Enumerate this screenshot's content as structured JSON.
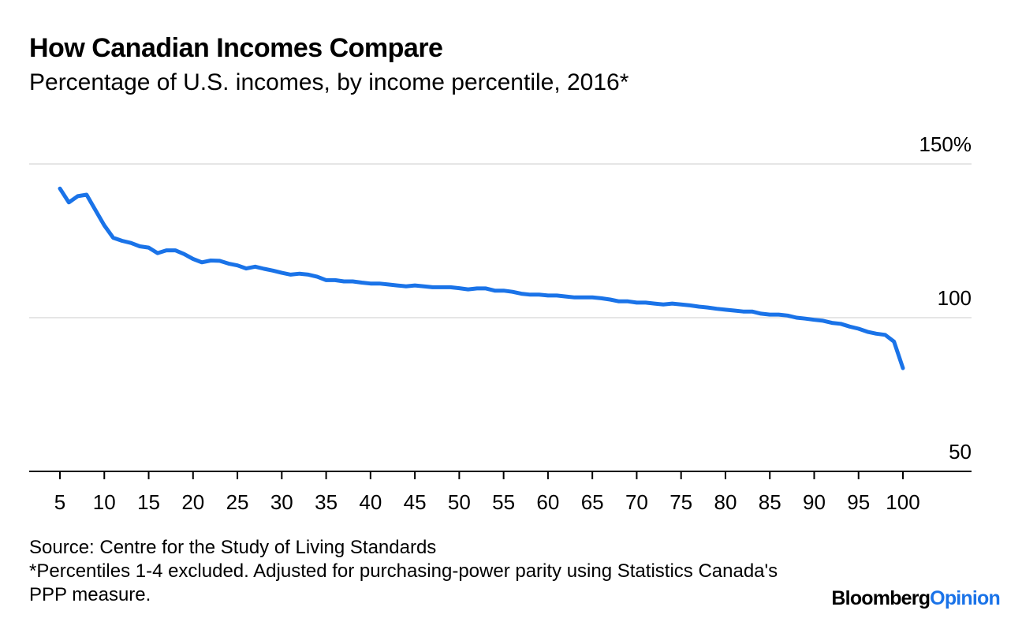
{
  "title": "How Canadian Incomes Compare",
  "subtitle": "Percentage of U.S. incomes, by income percentile, 2016*",
  "source": "Source: Centre for the Study of Living Standards",
  "footnote": "*Percentiles 1-4 excluded. Adjusted for purchasing-power parity using Statistics Canada's PPP measure.",
  "brand": {
    "part1": "Bloomberg",
    "part2": "Opinion"
  },
  "colors": {
    "line": "#1a73e8",
    "grid": "#e6e6e6",
    "axis": "#000000",
    "brand_accent": "#1a73e8"
  },
  "chart_data": {
    "type": "line",
    "xlabel": "",
    "ylabel": "",
    "xlim": [
      5,
      100
    ],
    "ylim": [
      50,
      150
    ],
    "x_ticks": [
      5,
      10,
      15,
      20,
      25,
      30,
      35,
      40,
      45,
      50,
      55,
      60,
      65,
      70,
      75,
      80,
      85,
      90,
      95,
      100
    ],
    "y_ticks": [
      {
        "value": 150,
        "label": "150%"
      },
      {
        "value": 100,
        "label": "100"
      },
      {
        "value": 50,
        "label": "50"
      }
    ],
    "grid": "horizontal",
    "series": [
      {
        "x": [
          5,
          6,
          7,
          8,
          9,
          10,
          11,
          12,
          13,
          14,
          15,
          16,
          17,
          18,
          19,
          20,
          21,
          22,
          23,
          24,
          25,
          26,
          27,
          28,
          29,
          30,
          31,
          32,
          33,
          34,
          35,
          36,
          37,
          38,
          39,
          40,
          41,
          42,
          43,
          44,
          45,
          46,
          47,
          48,
          49,
          50,
          51,
          52,
          53,
          54,
          55,
          56,
          57,
          58,
          59,
          60,
          61,
          62,
          63,
          64,
          65,
          66,
          67,
          68,
          69,
          70,
          71,
          72,
          73,
          74,
          75,
          76,
          77,
          78,
          79,
          80,
          81,
          82,
          83,
          84,
          85,
          86,
          87,
          88,
          89,
          90,
          91,
          92,
          93,
          94,
          95,
          96,
          97,
          98,
          99,
          100
        ],
        "values": [
          142,
          137.5,
          139.5,
          140,
          135,
          130,
          126,
          125,
          124.3,
          123.2,
          122.8,
          121,
          121.9,
          121.9,
          120.7,
          119.1,
          118,
          118.6,
          118.5,
          117.6,
          117,
          116,
          116.6,
          115.9,
          115.3,
          114.6,
          114,
          114.3,
          114,
          113.3,
          112.2,
          112.2,
          111.8,
          111.8,
          111.4,
          111.1,
          111.1,
          110.8,
          110.5,
          110.2,
          110.5,
          110.2,
          109.9,
          109.9,
          109.9,
          109.6,
          109.2,
          109.5,
          109.5,
          108.8,
          108.8,
          108.4,
          107.8,
          107.5,
          107.5,
          107.2,
          107.2,
          106.9,
          106.6,
          106.6,
          106.6,
          106.3,
          105.9,
          105.3,
          105.3,
          104.9,
          104.9,
          104.6,
          104.3,
          104.6,
          104.3,
          104,
          103.6,
          103.3,
          102.9,
          102.6,
          102.3,
          102,
          102,
          101.3,
          101,
          101,
          100.7,
          100,
          99.7,
          99.3,
          99,
          98.3,
          98,
          97.1,
          96.4,
          95.4,
          94.8,
          94.4,
          92.2,
          83.6
        ]
      }
    ]
  }
}
